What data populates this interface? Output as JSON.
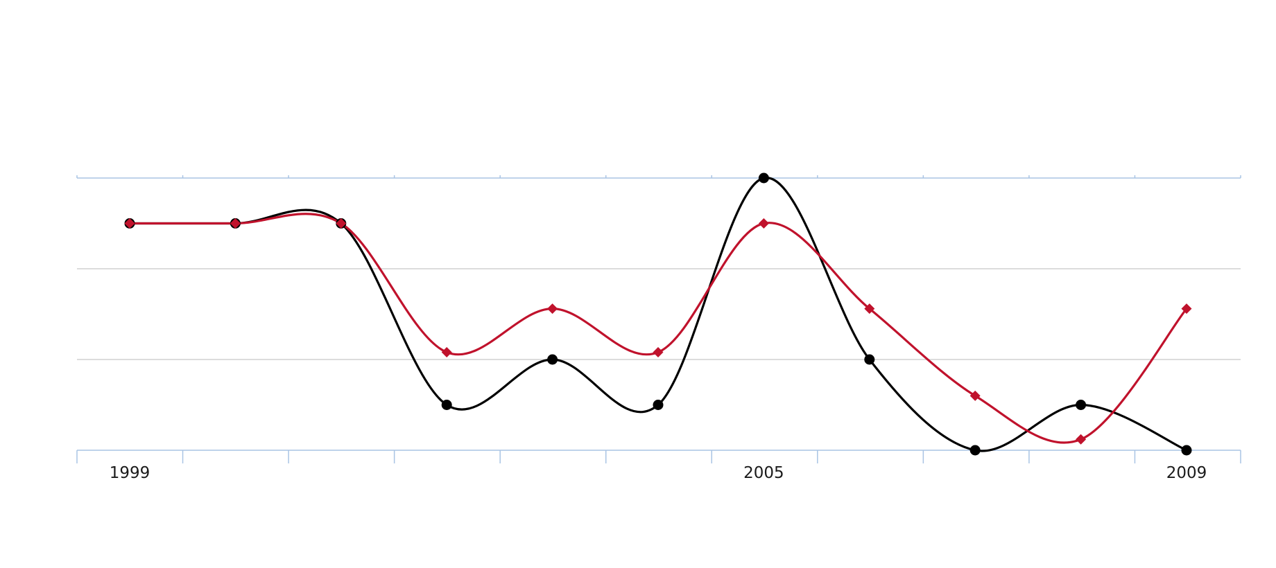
{
  "chart_data": {
    "type": "line",
    "title": "",
    "xlabel": "",
    "ylabel": "",
    "x": [
      "1999",
      "2000",
      "2001",
      "2002",
      "2003",
      "2004",
      "2005",
      "2006",
      "2007",
      "2008",
      "2009"
    ],
    "x_tick_labels": [
      "1999",
      "",
      "",
      "",
      "",
      "",
      "2005",
      "",
      "",
      "",
      "2009"
    ],
    "ylim": [
      0,
      3
    ],
    "grid": true,
    "legend": "none",
    "curve": "smooth",
    "series": [
      {
        "color": "#000000",
        "marker": "circle",
        "values": [
          2.5,
          2.5,
          2.5,
          0.5,
          1.0,
          0.5,
          3.0,
          1.0,
          0.0,
          0.5,
          0.0
        ]
      },
      {
        "color": "#c0122c",
        "marker": "diamond",
        "values": [
          2.5,
          2.5,
          2.5,
          1.08,
          1.56,
          1.08,
          2.5,
          1.56,
          0.6,
          0.12,
          1.56
        ]
      }
    ],
    "colors": {
      "gridline": "#d0d0d0",
      "axis": "#a9c4e4",
      "tick_label": "#1a1a1a"
    }
  }
}
